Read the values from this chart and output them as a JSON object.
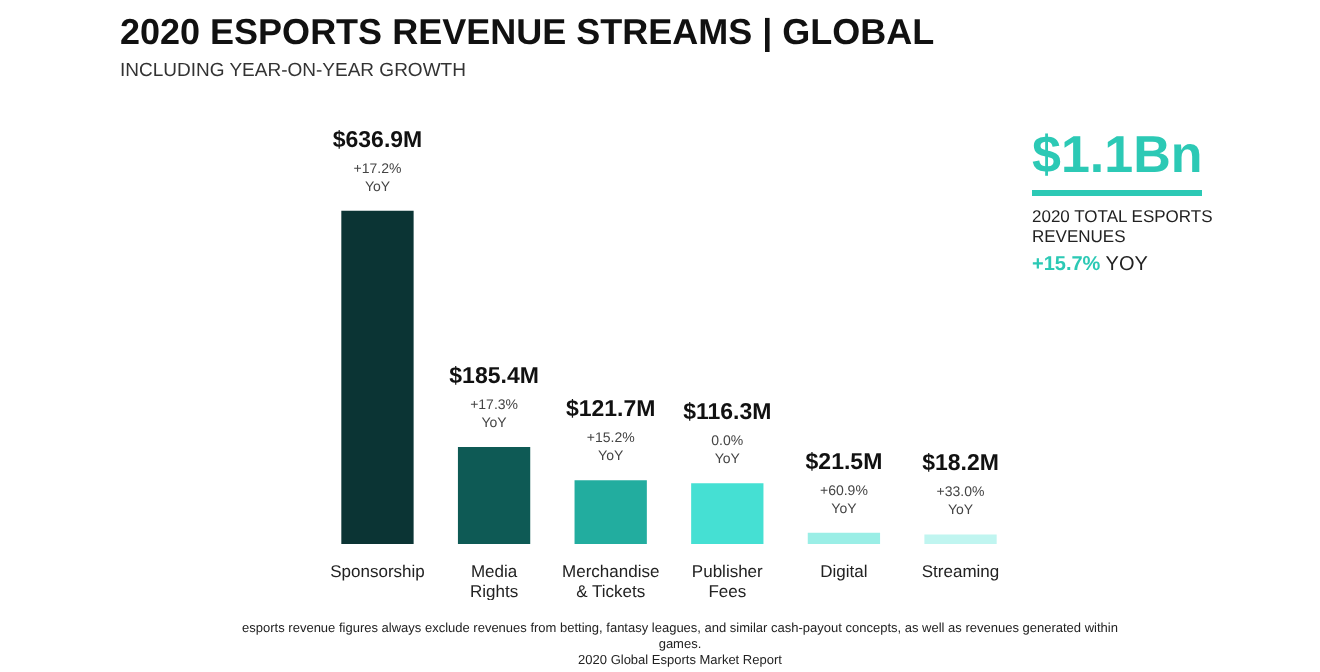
{
  "chart_data": {
    "type": "bar",
    "title": "2020 ESPORTS REVENUE STREAMS | GLOBAL",
    "subtitle": "INCLUDING YEAR-ON-YEAR GROWTH",
    "categories": [
      "Sponsorship",
      "Media Rights",
      "Merchandise & Tickets",
      "Publisher Fees",
      "Digital",
      "Streaming"
    ],
    "values": [
      636.9,
      185.4,
      121.7,
      116.3,
      21.5,
      18.2
    ],
    "colors": [
      "#0b3434",
      "#0e5a55",
      "#22ad9f",
      "#45e0d3",
      "#9aeee6",
      "#c0f5f0"
    ],
    "value_labels": [
      "$636.9M",
      "$185.4M",
      "$121.7M",
      "$116.3M",
      "$21.5M",
      "$18.2M"
    ],
    "annotations": [
      {
        "text": "+17.2% YoY",
        "x": "Sponsorship",
        "y": 636.9
      },
      {
        "text": "+17.3% YoY",
        "x": "Media Rights",
        "y": 185.4
      },
      {
        "text": "+15.2% YoY",
        "x": "Merchandise & Tickets",
        "y": 121.7
      },
      {
        "text": "0.0% YoY",
        "x": "Publisher Fees",
        "y": 116.3
      },
      {
        "text": "+60.9% YoY",
        "x": "Digital",
        "y": 21.5
      },
      {
        "text": "+33.0% YoY",
        "x": "Streaming",
        "y": 18.2
      },
      "$1.1Bn",
      "2020 TOTAL ESPORTS REVENUES",
      "+15.7% YOY",
      "esports revenue figures always exclude revenues from betting, fantasy leagues, and similar cash-payout concepts, as well as revenues generated within games.",
      "2020 Global Esports Market Report"
    ],
    "grid": false,
    "legend": false
  }
}
